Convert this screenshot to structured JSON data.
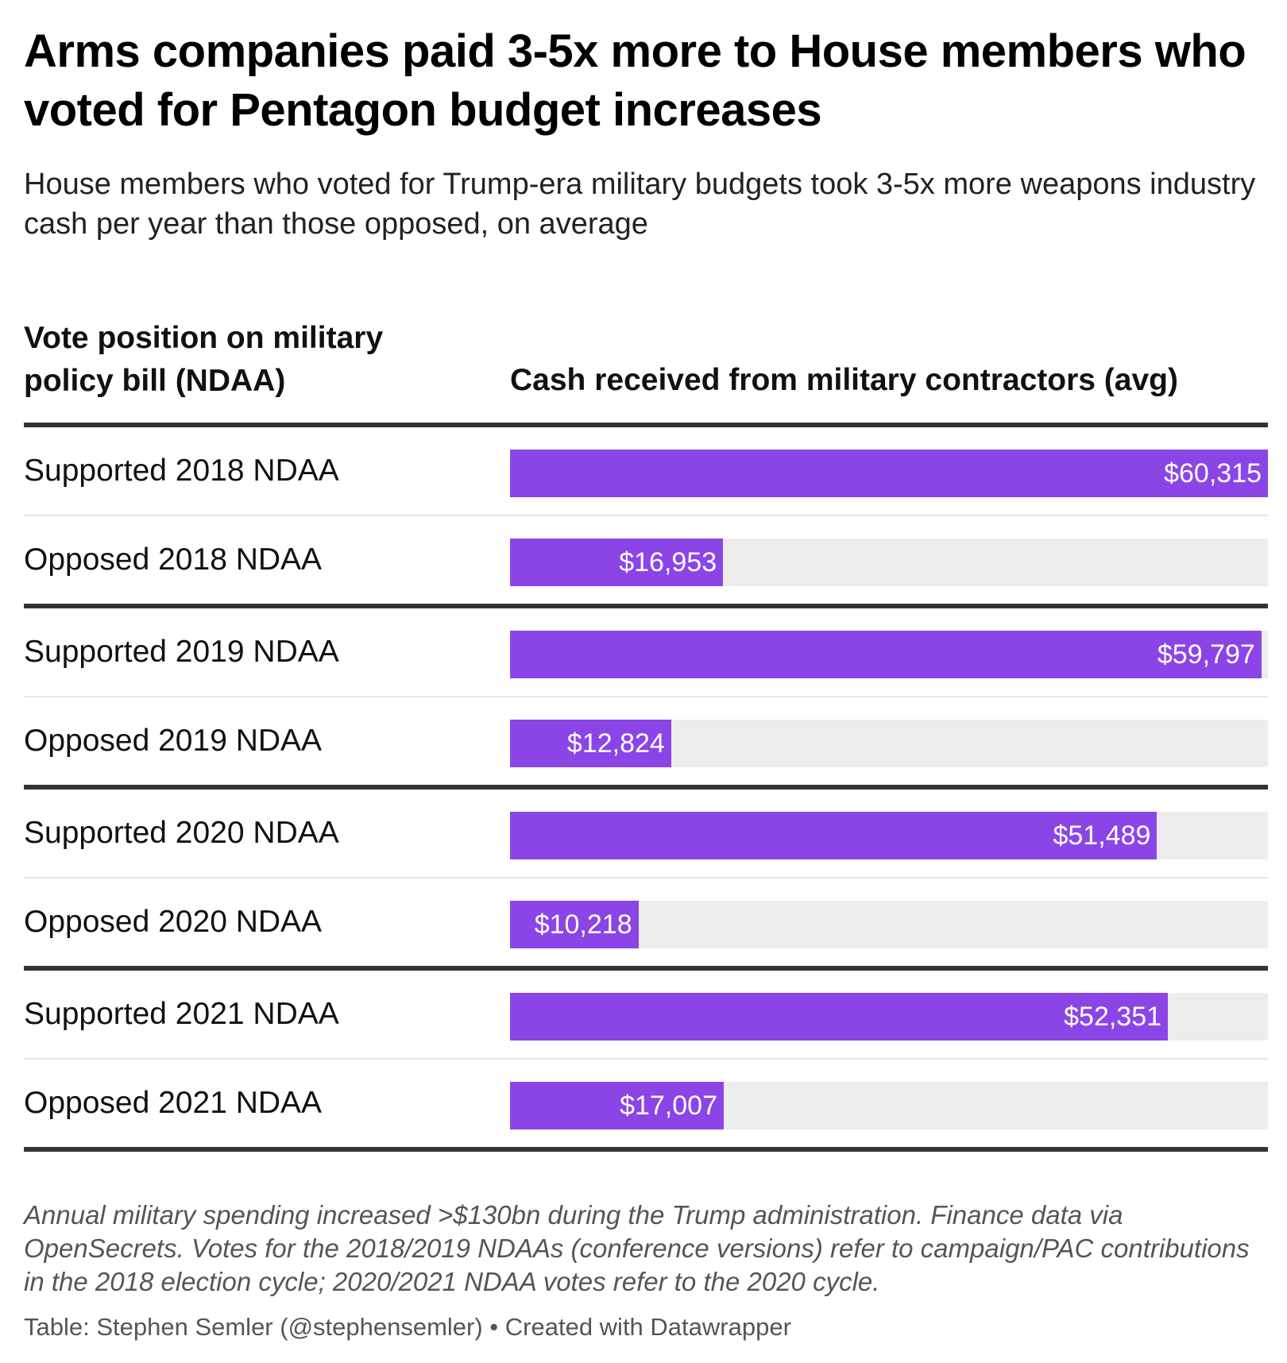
{
  "header": {
    "title": "Arms companies paid 3-5x more to House members who voted for Pentagon budget increases",
    "subtitle": "House members who voted for Trump-era military budgets took 3-5x more weapons industry cash per year than those opposed, on average"
  },
  "columns": {
    "left": "Vote position on military policy bill (NDAA)",
    "right": "Cash received from military contractors (avg)"
  },
  "colors": {
    "bar": "#8b45e7",
    "track": "#ededed",
    "group_rule": "#333333",
    "row_rule": "#e6e6e6"
  },
  "chart_data": {
    "type": "bar",
    "orientation": "horizontal",
    "categories": [
      "Supported 2018 NDAA",
      "Opposed 2018 NDAA",
      "Supported 2019 NDAA",
      "Opposed 2019 NDAA",
      "Supported 2020 NDAA",
      "Opposed 2020 NDAA",
      "Supported 2021 NDAA",
      "Opposed 2021 NDAA"
    ],
    "values": [
      60315,
      16953,
      59797,
      12824,
      51489,
      10218,
      52351,
      17007
    ],
    "value_labels": [
      "$60,315",
      "$16,953",
      "$59,797",
      "$12,824",
      "$51,489",
      "$10,218",
      "$52,351",
      "$17,007"
    ],
    "xlim": [
      0,
      60315
    ],
    "title": "Arms companies paid 3-5x more to House members who voted for Pentagon budget increases",
    "xlabel": "Cash received from military contractors (avg)",
    "ylabel": "Vote position on military policy bill (NDAA)"
  },
  "footer": {
    "notes": "Annual military spending increased >$130bn during the Trump administration. Finance data via OpenSecrets. Votes for the 2018/2019 NDAAs (conference versions) refer to campaign/PAC contributions in the 2018 election cycle; 2020/2021 NDAA votes refer to the 2020 cycle.",
    "credit": "Table: Stephen Semler (@stephensemler) • Created with Datawrapper"
  }
}
